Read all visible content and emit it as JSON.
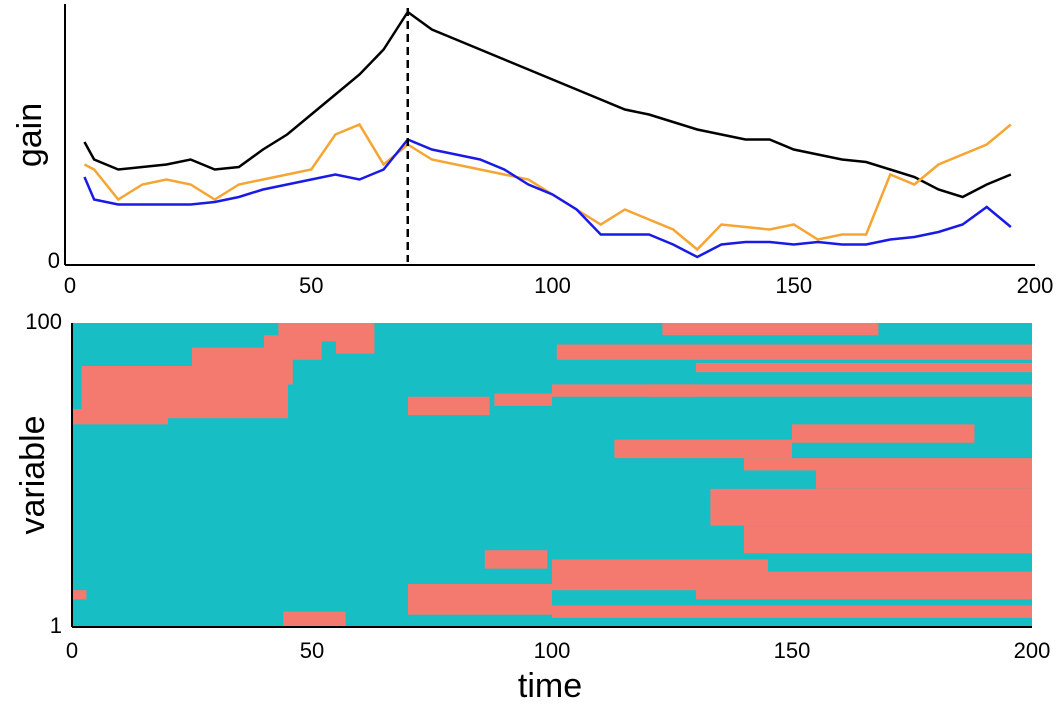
{
  "chart_data": [
    {
      "type": "line",
      "ylabel": "gain",
      "x": [
        3,
        5,
        10,
        15,
        20,
        25,
        30,
        35,
        40,
        45,
        50,
        55,
        60,
        65,
        70,
        75,
        80,
        85,
        90,
        95,
        100,
        105,
        110,
        115,
        120,
        125,
        130,
        135,
        140,
        145,
        150,
        155,
        160,
        165,
        170,
        175,
        180,
        185,
        190,
        195
      ],
      "series": [
        {
          "color": "#000000",
          "values": [
            48,
            41,
            37,
            38,
            39,
            41,
            37,
            38,
            45,
            51,
            59,
            67,
            75,
            85,
            100,
            93,
            89,
            85,
            81,
            77,
            73,
            69,
            65,
            61,
            59,
            56,
            53,
            51,
            49,
            49,
            45,
            43,
            41,
            40,
            37,
            34,
            29,
            26,
            31,
            35
          ]
        },
        {
          "color": "#f5a533",
          "values": [
            39,
            37,
            25,
            31,
            33,
            31,
            25,
            31,
            33,
            35,
            37,
            51,
            55,
            39,
            47,
            41,
            39,
            37,
            35,
            33,
            27,
            21,
            15,
            21,
            17,
            13,
            5,
            15,
            14,
            13,
            15,
            9,
            11,
            11,
            35,
            31,
            39,
            43,
            47,
            55
          ]
        },
        {
          "color": "#1a1ae6",
          "values": [
            34,
            25,
            23,
            23,
            23,
            23,
            24,
            26,
            29,
            31,
            33,
            35,
            33,
            37,
            49,
            45,
            43,
            41,
            37,
            31,
            27,
            21,
            11,
            11,
            11,
            7,
            2,
            7,
            8,
            8,
            7,
            8,
            7,
            7,
            9,
            10,
            12,
            15,
            22,
            14
          ]
        }
      ],
      "vline": 70,
      "xlim": [
        0,
        200
      ],
      "xticks": [
        0,
        50,
        100,
        150,
        200
      ],
      "ylim": [
        0,
        100
      ],
      "yticks": [
        0
      ]
    },
    {
      "type": "heatmap",
      "xlabel": "time",
      "ylabel": "variable",
      "base_color": "#17bec4",
      "color": "#f47a70",
      "segments": [
        [
          2,
          45,
          69,
          86
        ],
        [
          25,
          46,
          80,
          92
        ],
        [
          40,
          52,
          88,
          96
        ],
        [
          43,
          56,
          94,
          100
        ],
        [
          55,
          63,
          90,
          100
        ],
        [
          0,
          20,
          67,
          72
        ],
        [
          70,
          87,
          70,
          76
        ],
        [
          88,
          100,
          73,
          77
        ],
        [
          100,
          130,
          76,
          80
        ],
        [
          120,
          200,
          76,
          80
        ],
        [
          123,
          168,
          96,
          100
        ],
        [
          101,
          200,
          88,
          93
        ],
        [
          130,
          200,
          84,
          87
        ],
        [
          113,
          150,
          56,
          62
        ],
        [
          150,
          188,
          61,
          67
        ],
        [
          140,
          200,
          52,
          56
        ],
        [
          155,
          200,
          46,
          53
        ],
        [
          133,
          200,
          34,
          46
        ],
        [
          140,
          200,
          25,
          34
        ],
        [
          86,
          99,
          20,
          26
        ],
        [
          100,
          145,
          13,
          23
        ],
        [
          130,
          200,
          10,
          19
        ],
        [
          70,
          100,
          5,
          15
        ],
        [
          100,
          200,
          4,
          8
        ],
        [
          44,
          57,
          1,
          6
        ],
        [
          0,
          3,
          10,
          13
        ]
      ],
      "xlim": [
        0,
        200
      ],
      "xticks": [
        0,
        50,
        100,
        150,
        200
      ],
      "ylim": [
        1,
        100
      ],
      "yticks": [
        1,
        100
      ]
    }
  ]
}
